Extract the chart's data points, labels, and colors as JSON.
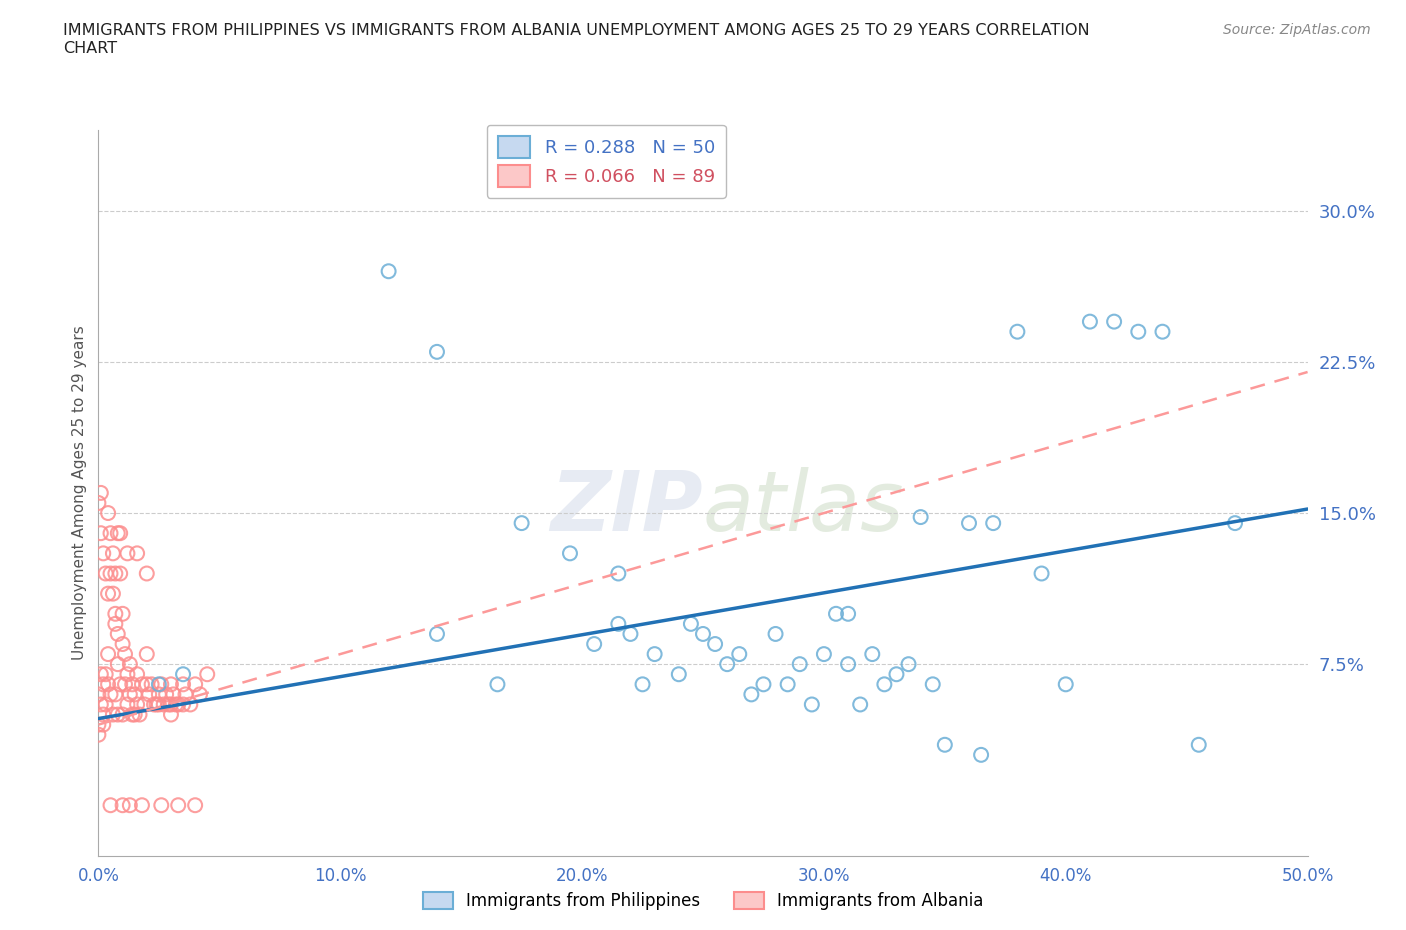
{
  "title": "IMMIGRANTS FROM PHILIPPINES VS IMMIGRANTS FROM ALBANIA UNEMPLOYMENT AMONG AGES 25 TO 29 YEARS CORRELATION\nCHART",
  "source": "Source: ZipAtlas.com",
  "ylabel": "Unemployment Among Ages 25 to 29 years",
  "xlim": [
    0.0,
    0.5
  ],
  "ylim": [
    -0.02,
    0.34
  ],
  "xticks": [
    0.0,
    0.1,
    0.2,
    0.3,
    0.4,
    0.5
  ],
  "xtick_labels": [
    "0.0%",
    "10.0%",
    "20.0%",
    "30.0%",
    "40.0%",
    "50.0%"
  ],
  "ytick_labels": [
    "7.5%",
    "15.0%",
    "22.5%",
    "30.0%"
  ],
  "ytick_vals": [
    0.075,
    0.15,
    0.225,
    0.3
  ],
  "grid_color": "#cccccc",
  "philippines_color": "#6baed6",
  "albania_color": "#fc8d8d",
  "philippines_line_color": "#2171b5",
  "albania_line_color": "#fc9999",
  "philippines_R": 0.288,
  "philippines_N": 50,
  "albania_R": 0.066,
  "albania_N": 89,
  "phil_line_x": [
    0.0,
    0.5
  ],
  "phil_line_y": [
    0.048,
    0.152
  ],
  "alba_line_x": [
    0.0,
    0.5
  ],
  "alba_line_y": [
    0.045,
    0.22
  ],
  "philippines_x": [
    0.025,
    0.12,
    0.14,
    0.165,
    0.195,
    0.205,
    0.215,
    0.215,
    0.22,
    0.225,
    0.23,
    0.24,
    0.245,
    0.25,
    0.255,
    0.26,
    0.265,
    0.27,
    0.275,
    0.28,
    0.285,
    0.29,
    0.295,
    0.3,
    0.305,
    0.31,
    0.315,
    0.32,
    0.325,
    0.33,
    0.335,
    0.34,
    0.345,
    0.35,
    0.36,
    0.365,
    0.37,
    0.38,
    0.39,
    0.4,
    0.41,
    0.42,
    0.43,
    0.44,
    0.455,
    0.47,
    0.175,
    0.14,
    0.31,
    0.035
  ],
  "philippines_y": [
    0.065,
    0.27,
    0.09,
    0.065,
    0.13,
    0.085,
    0.095,
    0.12,
    0.09,
    0.065,
    0.08,
    0.07,
    0.095,
    0.09,
    0.085,
    0.075,
    0.08,
    0.06,
    0.065,
    0.09,
    0.065,
    0.075,
    0.055,
    0.08,
    0.1,
    0.075,
    0.055,
    0.08,
    0.065,
    0.07,
    0.075,
    0.148,
    0.065,
    0.035,
    0.145,
    0.03,
    0.145,
    0.24,
    0.12,
    0.065,
    0.245,
    0.245,
    0.24,
    0.24,
    0.035,
    0.145,
    0.145,
    0.23,
    0.1,
    0.07
  ],
  "albania_x": [
    0.0,
    0.0,
    0.001,
    0.001,
    0.001,
    0.002,
    0.002,
    0.002,
    0.003,
    0.003,
    0.003,
    0.004,
    0.004,
    0.004,
    0.005,
    0.005,
    0.005,
    0.006,
    0.006,
    0.006,
    0.007,
    0.007,
    0.007,
    0.008,
    0.008,
    0.008,
    0.009,
    0.009,
    0.009,
    0.01,
    0.01,
    0.01,
    0.011,
    0.011,
    0.012,
    0.012,
    0.013,
    0.013,
    0.014,
    0.014,
    0.015,
    0.015,
    0.016,
    0.016,
    0.017,
    0.018,
    0.019,
    0.02,
    0.02,
    0.021,
    0.022,
    0.023,
    0.024,
    0.025,
    0.026,
    0.027,
    0.028,
    0.029,
    0.03,
    0.03,
    0.031,
    0.032,
    0.033,
    0.035,
    0.036,
    0.038,
    0.04,
    0.042,
    0.045,
    0.0,
    0.001,
    0.004,
    0.008,
    0.012,
    0.016,
    0.02,
    0.025,
    0.03,
    0.035,
    0.005,
    0.01,
    0.018,
    0.026,
    0.033,
    0.04,
    0.0,
    0.002,
    0.007,
    0.013
  ],
  "albania_y": [
    0.06,
    0.04,
    0.07,
    0.055,
    0.14,
    0.065,
    0.05,
    0.13,
    0.07,
    0.055,
    0.12,
    0.08,
    0.065,
    0.11,
    0.14,
    0.12,
    0.06,
    0.13,
    0.11,
    0.05,
    0.12,
    0.1,
    0.06,
    0.09,
    0.075,
    0.05,
    0.14,
    0.12,
    0.065,
    0.1,
    0.085,
    0.05,
    0.08,
    0.065,
    0.07,
    0.055,
    0.075,
    0.06,
    0.065,
    0.05,
    0.06,
    0.05,
    0.07,
    0.055,
    0.05,
    0.065,
    0.055,
    0.08,
    0.065,
    0.06,
    0.065,
    0.055,
    0.055,
    0.06,
    0.065,
    0.055,
    0.06,
    0.055,
    0.065,
    0.05,
    0.06,
    0.055,
    0.055,
    0.065,
    0.06,
    0.055,
    0.065,
    0.06,
    0.07,
    0.155,
    0.16,
    0.15,
    0.14,
    0.13,
    0.13,
    0.12,
    0.055,
    0.055,
    0.055,
    0.005,
    0.005,
    0.005,
    0.005,
    0.005,
    0.005,
    0.045,
    0.045,
    0.095,
    0.005
  ]
}
